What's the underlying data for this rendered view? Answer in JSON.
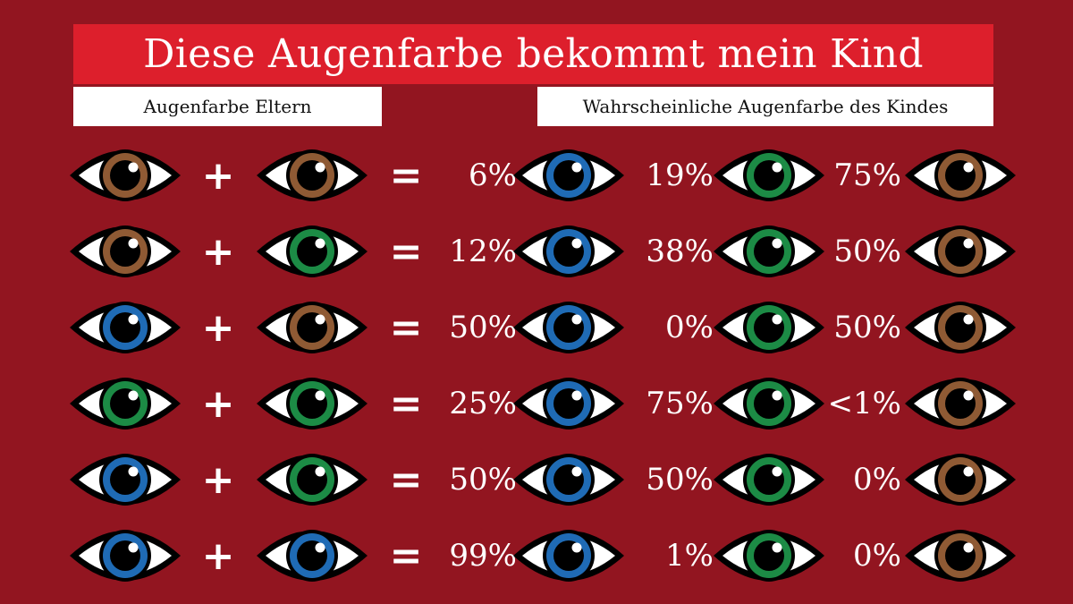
{
  "title": "Diese Augenfarbe bekommt mein Kind",
  "labels": {
    "parents": "Augenfarbe Eltern",
    "child": "Wahrscheinliche Augenfarbe des Kindes"
  },
  "symbols": {
    "plus": "+",
    "equals": "="
  },
  "colors": {
    "background": "#921520",
    "title_bar": "#dd1f2c",
    "brown": "#8f5a34",
    "green": "#1c8b45",
    "blue": "#1f6bb5"
  },
  "child_eye_colors": [
    "blue",
    "green",
    "brown"
  ],
  "rows": [
    {
      "parent1": "brown",
      "parent2": "brown",
      "blue": "6%",
      "green": "19%",
      "brown": "75%"
    },
    {
      "parent1": "brown",
      "parent2": "green",
      "blue": "12%",
      "green": "38%",
      "brown": "50%"
    },
    {
      "parent1": "blue",
      "parent2": "brown",
      "blue": "50%",
      "green": "0%",
      "brown": "50%"
    },
    {
      "parent1": "green",
      "parent2": "green",
      "blue": "25%",
      "green": "75%",
      "brown": "<1%"
    },
    {
      "parent1": "blue",
      "parent2": "green",
      "blue": "50%",
      "green": "50%",
      "brown": "0%"
    },
    {
      "parent1": "blue",
      "parent2": "blue",
      "blue": "99%",
      "green": "1%",
      "brown": "0%"
    }
  ]
}
